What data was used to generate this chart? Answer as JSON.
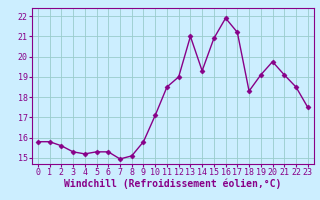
{
  "x": [
    0,
    1,
    2,
    3,
    4,
    5,
    6,
    7,
    8,
    9,
    10,
    11,
    12,
    13,
    14,
    15,
    16,
    17,
    18,
    19,
    20,
    21,
    22,
    23
  ],
  "y": [
    15.8,
    15.8,
    15.6,
    15.3,
    15.2,
    15.3,
    15.3,
    14.95,
    15.1,
    15.8,
    17.1,
    18.5,
    19.0,
    21.0,
    19.3,
    20.9,
    21.9,
    21.2,
    18.3,
    19.1,
    19.75,
    19.1,
    18.5,
    17.5
  ],
  "line_color": "#880088",
  "marker": "D",
  "markersize": 2.5,
  "linewidth": 1.0,
  "xlabel": "Windchill (Refroidissement éolien,°C)",
  "xlabel_fontsize": 7,
  "ylim": [
    14.7,
    22.4
  ],
  "xlim": [
    -0.5,
    23.5
  ],
  "yticks": [
    15,
    16,
    17,
    18,
    19,
    20,
    21,
    22
  ],
  "xticks": [
    0,
    1,
    2,
    3,
    4,
    5,
    6,
    7,
    8,
    9,
    10,
    11,
    12,
    13,
    14,
    15,
    16,
    17,
    18,
    19,
    20,
    21,
    22,
    23
  ],
  "bg_color": "#cceeff",
  "grid_color": "#99cccc",
  "tick_fontsize": 6,
  "tick_color": "#880088",
  "xlabel_color": "#880088",
  "spine_color": "#880088"
}
